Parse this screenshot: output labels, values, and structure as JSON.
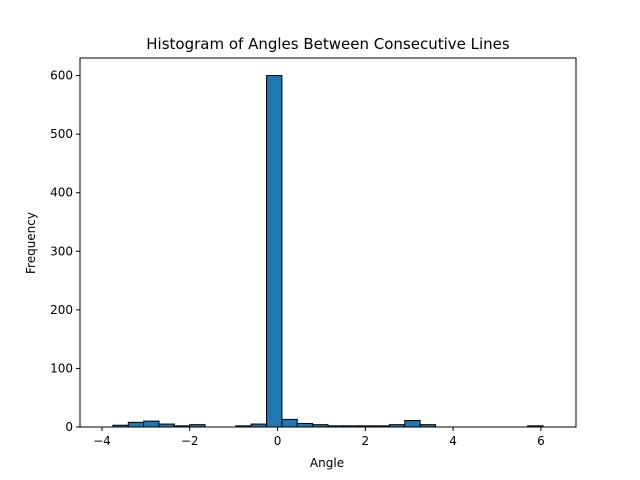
{
  "chart_data": {
    "type": "bar",
    "title": "Histogram of Angles Between Consecutive Lines",
    "xlabel": "Angle",
    "ylabel": "Frequency",
    "xlim": [
      -4.5,
      6.8
    ],
    "ylim": [
      0,
      630
    ],
    "x_ticks": [
      -4,
      -2,
      0,
      2,
      4,
      6
    ],
    "x_tick_labels": [
      "−4",
      "−2",
      "0",
      "2",
      "4",
      "6"
    ],
    "y_ticks": [
      0,
      100,
      200,
      300,
      400,
      500,
      600
    ],
    "y_tick_labels": [
      "0",
      "100",
      "200",
      "300",
      "400",
      "500",
      "600"
    ],
    "bin_edges": [
      -4.1,
      -3.75,
      -3.4,
      -3.05,
      -2.7,
      -2.35,
      -2.0,
      -1.65,
      -1.3,
      -0.95,
      -0.6,
      -0.25,
      0.1,
      0.45,
      0.8,
      1.15,
      1.5,
      1.85,
      2.2,
      2.55,
      2.9,
      3.25,
      3.6,
      3.95,
      4.3,
      4.65,
      5.0,
      5.35,
      5.7,
      6.05
    ],
    "values": [
      0,
      3,
      8,
      10,
      5,
      2,
      4,
      0,
      0,
      2,
      5,
      600,
      13,
      6,
      4,
      2,
      2,
      2,
      2,
      4,
      11,
      4,
      0,
      0,
      0,
      0,
      0,
      0,
      2
    ],
    "bar_color": "#1f77b4",
    "edge_color": "#000000",
    "grid": false
  }
}
